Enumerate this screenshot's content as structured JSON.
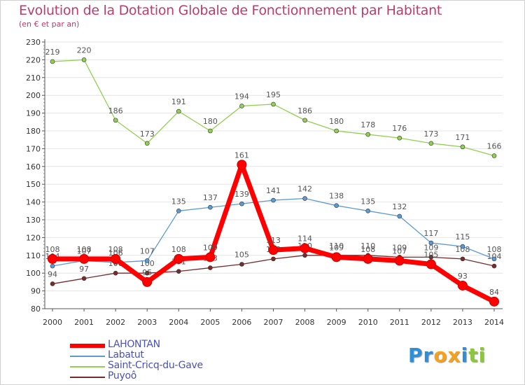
{
  "chart_data": {
    "type": "line",
    "title": "Evolution de la Dotation Globale de Fonctionnement par Habitant",
    "subtitle": "(en € et par an)",
    "xlabel": "",
    "ylabel": "",
    "ylim": [
      80,
      230
    ],
    "yticks": [
      80,
      90,
      100,
      110,
      120,
      130,
      140,
      150,
      160,
      170,
      180,
      190,
      200,
      210,
      220,
      230
    ],
    "categories": [
      "2000",
      "2001",
      "2002",
      "2003",
      "2004",
      "2005",
      "2006",
      "2007",
      "2008",
      "2009",
      "2010",
      "2011",
      "2012",
      "2013",
      "2014"
    ],
    "series": [
      {
        "name": "Puyoô",
        "color": "#7a2a2a",
        "values": [
          94,
          97,
          100,
          100,
          101,
          103,
          105,
          108,
          110,
          110,
          110,
          109,
          109,
          108,
          104
        ]
      },
      {
        "name": "Labatut",
        "color": "#5b9bd5",
        "values": [
          104,
          107,
          106,
          107,
          135,
          137,
          139,
          141,
          142,
          138,
          135,
          132,
          117,
          115,
          108
        ]
      },
      {
        "name": "Saint-Cricq-du-Gave",
        "color": "#92d050",
        "values": [
          219,
          220,
          186,
          173,
          191,
          180,
          194,
          195,
          186,
          180,
          178,
          176,
          173,
          171,
          166
        ]
      },
      {
        "name": "LAHONTAN",
        "color": "#ff0000",
        "values": [
          108,
          108,
          108,
          95,
          108,
          109,
          161,
          113,
          114,
          109,
          108,
          107,
          105,
          93,
          84
        ]
      }
    ],
    "legend": [
      "LAHONTAN",
      "Labatut",
      "Saint-Cricq-du-Gave",
      "Puyoô"
    ],
    "legend_position": "bottom-left",
    "grid": true
  },
  "logo": {
    "text": "Proxiti",
    "letters": [
      "P",
      "r",
      "o",
      "x",
      "i",
      "t",
      "i"
    ],
    "colors": [
      "#2f8fd6",
      "#2f8fd6",
      "#f4a21b",
      "#f4a21b",
      "#2f8fd6",
      "#8cc63f",
      "#8cc63f"
    ]
  }
}
